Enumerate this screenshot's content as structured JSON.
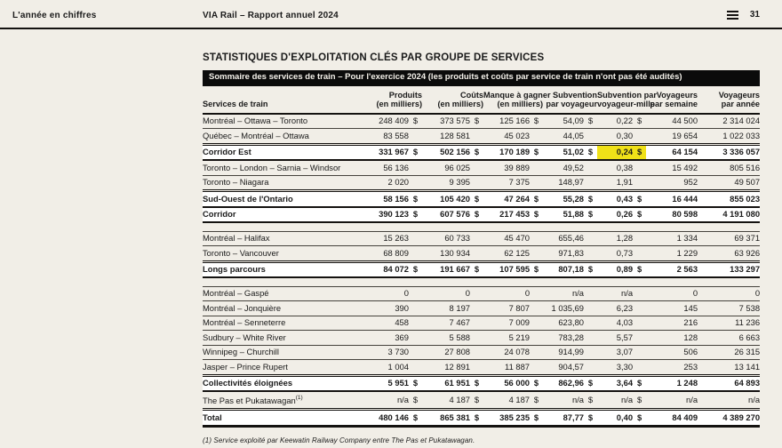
{
  "colors": {
    "page_bg": "#F1EEE7",
    "banner_bg": "#0B0B0B",
    "highlight": "#F0E118",
    "text": "#1A1A1A",
    "subtotal_row_bg": "#FFFFFF"
  },
  "header": {
    "section_label": "L'année en chiffres",
    "doc_title": "VIA Rail – Rapport annuel 2024",
    "page_number": "31",
    "menu_icon": "hamburger-icon"
  },
  "main": {
    "title": "STATISTIQUES D'EXPLOITATION CLÉS PAR GROUPE DE SERVICES",
    "banner": "Sommaire des services de train – Pour l'exercice 2024 (les produits et coûts par service de train n'ont pas été audités)",
    "footnote": "(1) Service exploité par Keewatin Railway Company entre The Pas et Pukatawagan."
  },
  "table": {
    "columns": [
      {
        "line1": "Services de train",
        "line2": ""
      },
      {
        "line1": "Produits",
        "line2": "(en milliers)"
      },
      {
        "line1": "Coûts",
        "line2": "(en milliers)"
      },
      {
        "line1": "Manque à gagner",
        "line2": "(en milliers)"
      },
      {
        "line1": "Subvention",
        "line2": "par voyageur"
      },
      {
        "line1": "Subvention par",
        "line2": "voyageur-mille"
      },
      {
        "line1": "Voyageurs",
        "line2": "par semaine"
      },
      {
        "line1": "Voyageurs",
        "line2": "par année"
      }
    ],
    "rows": [
      {
        "label": "Montréal – Ottawa – Toronto",
        "values": [
          "248 409",
          "373 575",
          "125 166",
          "54,09",
          "0,22"
        ],
        "dollar": true,
        "semaine": "44 500",
        "annee": "2 314 024",
        "bold": false
      },
      {
        "label": "Québec – Montréal – Ottawa",
        "values": [
          "83 558",
          "128 581",
          "45 023",
          "44,05",
          "0,30"
        ],
        "dollar": false,
        "semaine": "19 654",
        "annee": "1 022 033",
        "bold": false
      },
      {
        "label": "Corridor Est",
        "values": [
          "331 967",
          "502 156",
          "170 189",
          "51,02",
          "0,24"
        ],
        "dollar": true,
        "semaine": "64 154",
        "annee": "3 336 057",
        "bold": true,
        "highlight_col": 4
      },
      {
        "label": "Toronto – London – Sarnia – Windsor",
        "values": [
          "56 136",
          "96 025",
          "39 889",
          "49,52",
          "0,38"
        ],
        "dollar": false,
        "semaine": "15 492",
        "annee": "805 516",
        "bold": false
      },
      {
        "label": "Toronto – Niagara",
        "values": [
          "2 020",
          "9 395",
          "7 375",
          "148,97",
          "1,91"
        ],
        "dollar": false,
        "semaine": "952",
        "annee": "49 507",
        "bold": false
      },
      {
        "label": "Sud-Ouest de l'Ontario",
        "values": [
          "58 156",
          "105 420",
          "47 264",
          "55,28",
          "0,43"
        ],
        "dollar": true,
        "semaine": "16 444",
        "annee": "855 023",
        "bold": true
      },
      {
        "label": "Corridor",
        "values": [
          "390 123",
          "607 576",
          "217 453",
          "51,88",
          "0,26"
        ],
        "dollar": true,
        "semaine": "80 598",
        "annee": "4 191 080",
        "bold": true
      },
      {
        "type": "gap"
      },
      {
        "label": "Montréal – Halifax",
        "values": [
          "15 263",
          "60 733",
          "45 470",
          "655,46",
          "1,28"
        ],
        "dollar": false,
        "semaine": "1 334",
        "annee": "69 371",
        "bold": false
      },
      {
        "label": "Toronto – Vancouver",
        "values": [
          "68 809",
          "130 934",
          "62 125",
          "971,83",
          "0,73"
        ],
        "dollar": false,
        "semaine": "1 229",
        "annee": "63 926",
        "bold": false
      },
      {
        "label": "Longs parcours",
        "values": [
          "84 072",
          "191 667",
          "107 595",
          "807,18",
          "0,89"
        ],
        "dollar": true,
        "semaine": "2 563",
        "annee": "133 297",
        "bold": true
      },
      {
        "type": "gap"
      },
      {
        "label": "Montréal – Gaspé",
        "values": [
          "0",
          "0",
          "0",
          "n/a",
          "n/a"
        ],
        "dollar": false,
        "semaine": "0",
        "annee": "0",
        "bold": false
      },
      {
        "label": "Montréal – Jonquière",
        "values": [
          "390",
          "8 197",
          "7 807",
          "1 035,69",
          "6,23"
        ],
        "dollar": false,
        "semaine": "145",
        "annee": "7 538",
        "bold": false
      },
      {
        "label": "Montréal – Senneterre",
        "values": [
          "458",
          "7 467",
          "7 009",
          "623,80",
          "4,03"
        ],
        "dollar": false,
        "semaine": "216",
        "annee": "11 236",
        "bold": false
      },
      {
        "label": "Sudbury – White River",
        "values": [
          "369",
          "5 588",
          "5 219",
          "783,28",
          "5,57"
        ],
        "dollar": false,
        "semaine": "128",
        "annee": "6 663",
        "bold": false
      },
      {
        "label": "Winnipeg – Churchill",
        "values": [
          "3 730",
          "27 808",
          "24 078",
          "914,99",
          "3,07"
        ],
        "dollar": false,
        "semaine": "506",
        "annee": "26 315",
        "bold": false
      },
      {
        "label": "Jasper – Prince Rupert",
        "values": [
          "1 004",
          "12 891",
          "11 887",
          "904,57",
          "3,30"
        ],
        "dollar": false,
        "semaine": "253",
        "annee": "13 141",
        "bold": false
      },
      {
        "label": "Collectivités éloignées",
        "values": [
          "5 951",
          "61 951",
          "56 000",
          "862,96",
          "3,64"
        ],
        "dollar": true,
        "semaine": "1 248",
        "annee": "64 893",
        "bold": true
      },
      {
        "label": "The Pas et Pukatawagan",
        "sup": "(1)",
        "values": [
          "n/a",
          "4 187",
          "4 187",
          "n/a",
          "n/a"
        ],
        "dollar": true,
        "semaine": "n/a",
        "annee": "n/a",
        "bold": false
      },
      {
        "label": "Total",
        "values": [
          "480 146",
          "865 381",
          "385 235",
          "87,77",
          "0,40"
        ],
        "dollar": true,
        "semaine": "84 409",
        "annee": "4 389 270",
        "bold": true,
        "total": true
      }
    ]
  }
}
